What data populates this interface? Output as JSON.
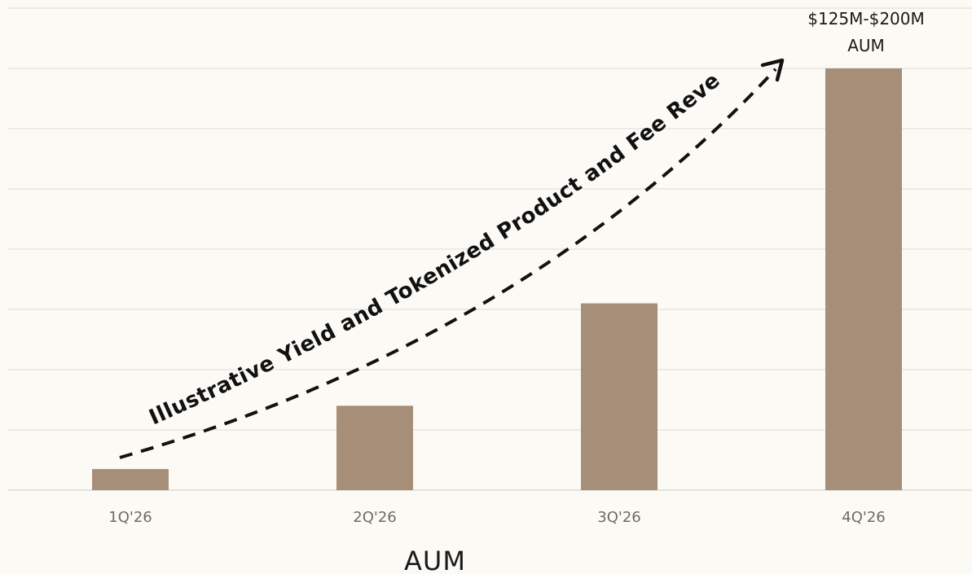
{
  "chart_data": {
    "type": "bar",
    "categories": [
      "1Q'26",
      "2Q'26",
      "3Q'26",
      "4Q'26"
    ],
    "values": [
      3.5,
      14,
      31,
      70
    ],
    "ylim": [
      0,
      80
    ],
    "xlabel": "AUM",
    "ylabel": "",
    "title": "",
    "grid": true,
    "data_labels": [
      "",
      "",
      "",
      "$125M-$200M AUM"
    ],
    "data_label_lines": [
      "$125M-$200M",
      "AUM"
    ],
    "annotation": "Illustrative Yield and Tokenized Product and Fee Revenue*",
    "colors": {
      "bar": "#A68E79",
      "grid": "#DDDAD3",
      "background": "#FCFAF5",
      "arrow": "#111111"
    }
  }
}
